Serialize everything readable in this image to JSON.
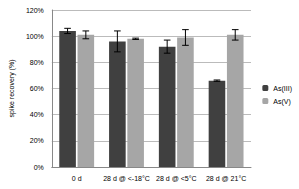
{
  "chart_data": {
    "type": "bar",
    "y_label": "spike recovery (%)",
    "categories": [
      "0 d",
      "28 d @ <-18°C",
      "28 d @ <5°C",
      "28 d @ 21°C"
    ],
    "series": [
      {
        "name": "As(III)",
        "color": "#404040",
        "values": [
          104,
          96,
          92,
          66
        ],
        "errors": [
          2,
          8,
          5,
          0.5
        ]
      },
      {
        "name": "As(V)",
        "color": "#a6a6a6",
        "values": [
          101,
          98,
          99,
          101
        ],
        "errors": [
          3,
          0.5,
          6,
          4
        ]
      }
    ],
    "ylim": [
      0,
      120
    ],
    "yticks": [
      {
        "value": 0,
        "label": "0%"
      },
      {
        "value": 20,
        "label": "20%"
      },
      {
        "value": 40,
        "label": "40%"
      },
      {
        "value": 60,
        "label": "60%"
      },
      {
        "value": 80,
        "label": "80%"
      },
      {
        "value": 100,
        "label": "100%"
      },
      {
        "value": 120,
        "label": "120%"
      }
    ],
    "grid": true,
    "legend": "right"
  }
}
